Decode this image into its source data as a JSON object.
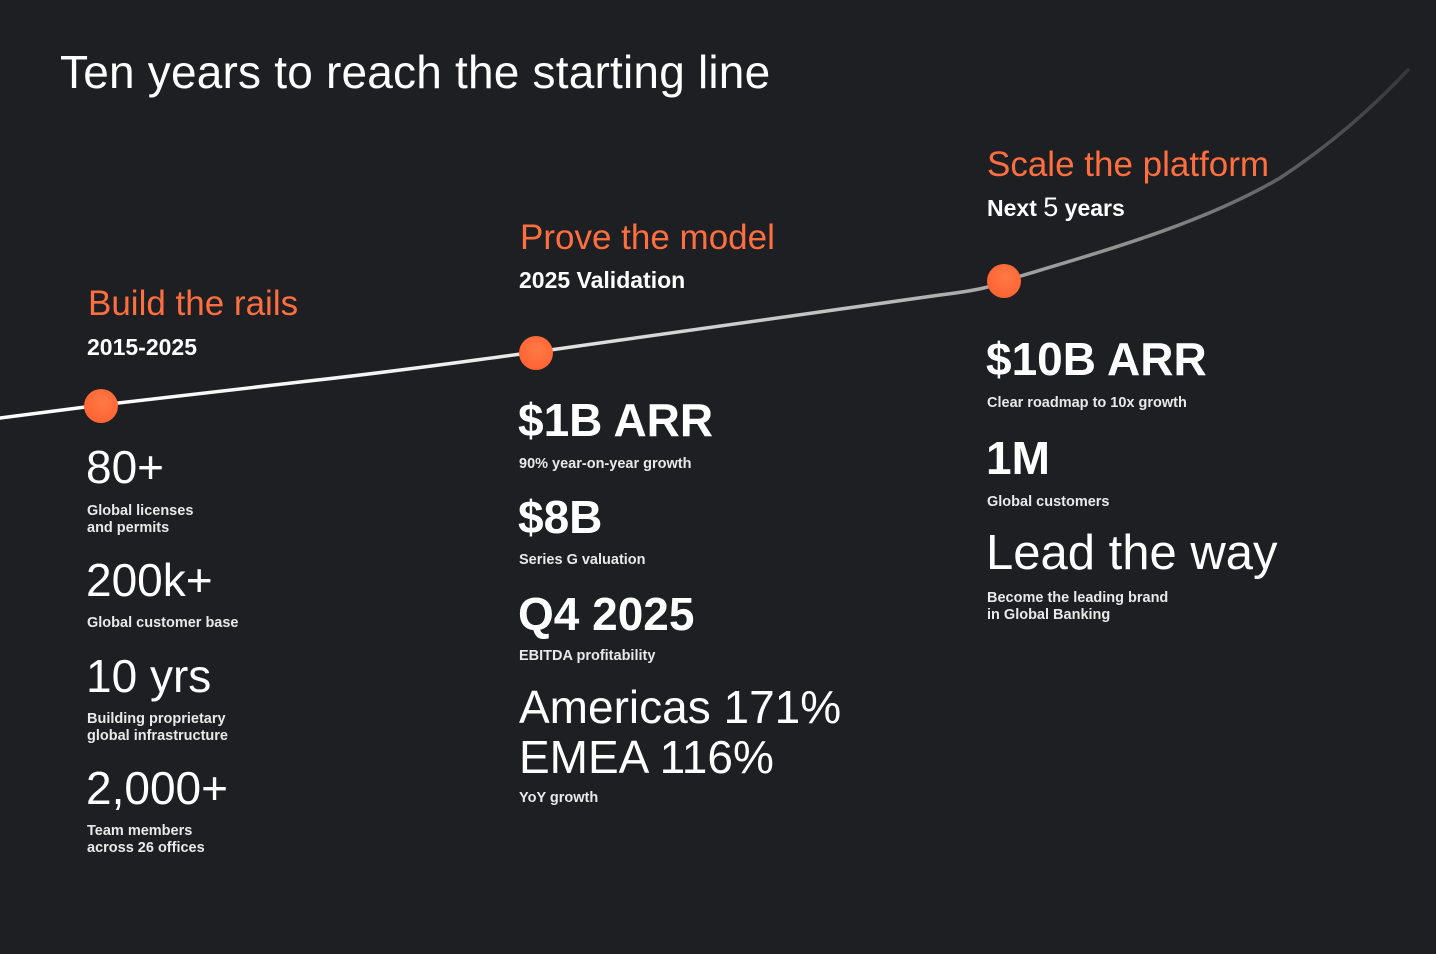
{
  "slide": {
    "title": "Ten years to reach the starting line",
    "accent_color": "#ff6e3f",
    "background_color": "#1d1f22"
  },
  "phases": [
    {
      "title": "Build the rails",
      "subtitle": "2015-2025",
      "stats": [
        {
          "value": "80+",
          "label": "Global licenses\nand permits"
        },
        {
          "value": "200k+",
          "label": "Global customer base"
        },
        {
          "value": "10 yrs",
          "label": "Building proprietary\nglobal infrastructure"
        },
        {
          "value": "2,000+",
          "label": "Team members\nacross 26 offices"
        }
      ]
    },
    {
      "title": "Prove the model",
      "subtitle": "2025 Validation",
      "stats": [
        {
          "value": "$1B ARR",
          "label": "90% year-on-year growth"
        },
        {
          "value": "$8B",
          "label": "Series G valuation"
        },
        {
          "value": "Q4 2025",
          "label": "EBITDA profitability"
        },
        {
          "value": "Americas 171%\nEMEA 116%",
          "label": "YoY growth"
        }
      ]
    },
    {
      "title": "Scale the platform",
      "subtitle_prefix": "Next",
      "subtitle_number": "5",
      "subtitle_suffix": "years",
      "stats": [
        {
          "value": "$10B ARR",
          "label": "Clear roadmap to 10x growth"
        },
        {
          "value": "1M",
          "label": "Global customers"
        },
        {
          "value": "Lead the way",
          "label": "Become the leading brand\nin Global Banking"
        }
      ]
    }
  ]
}
